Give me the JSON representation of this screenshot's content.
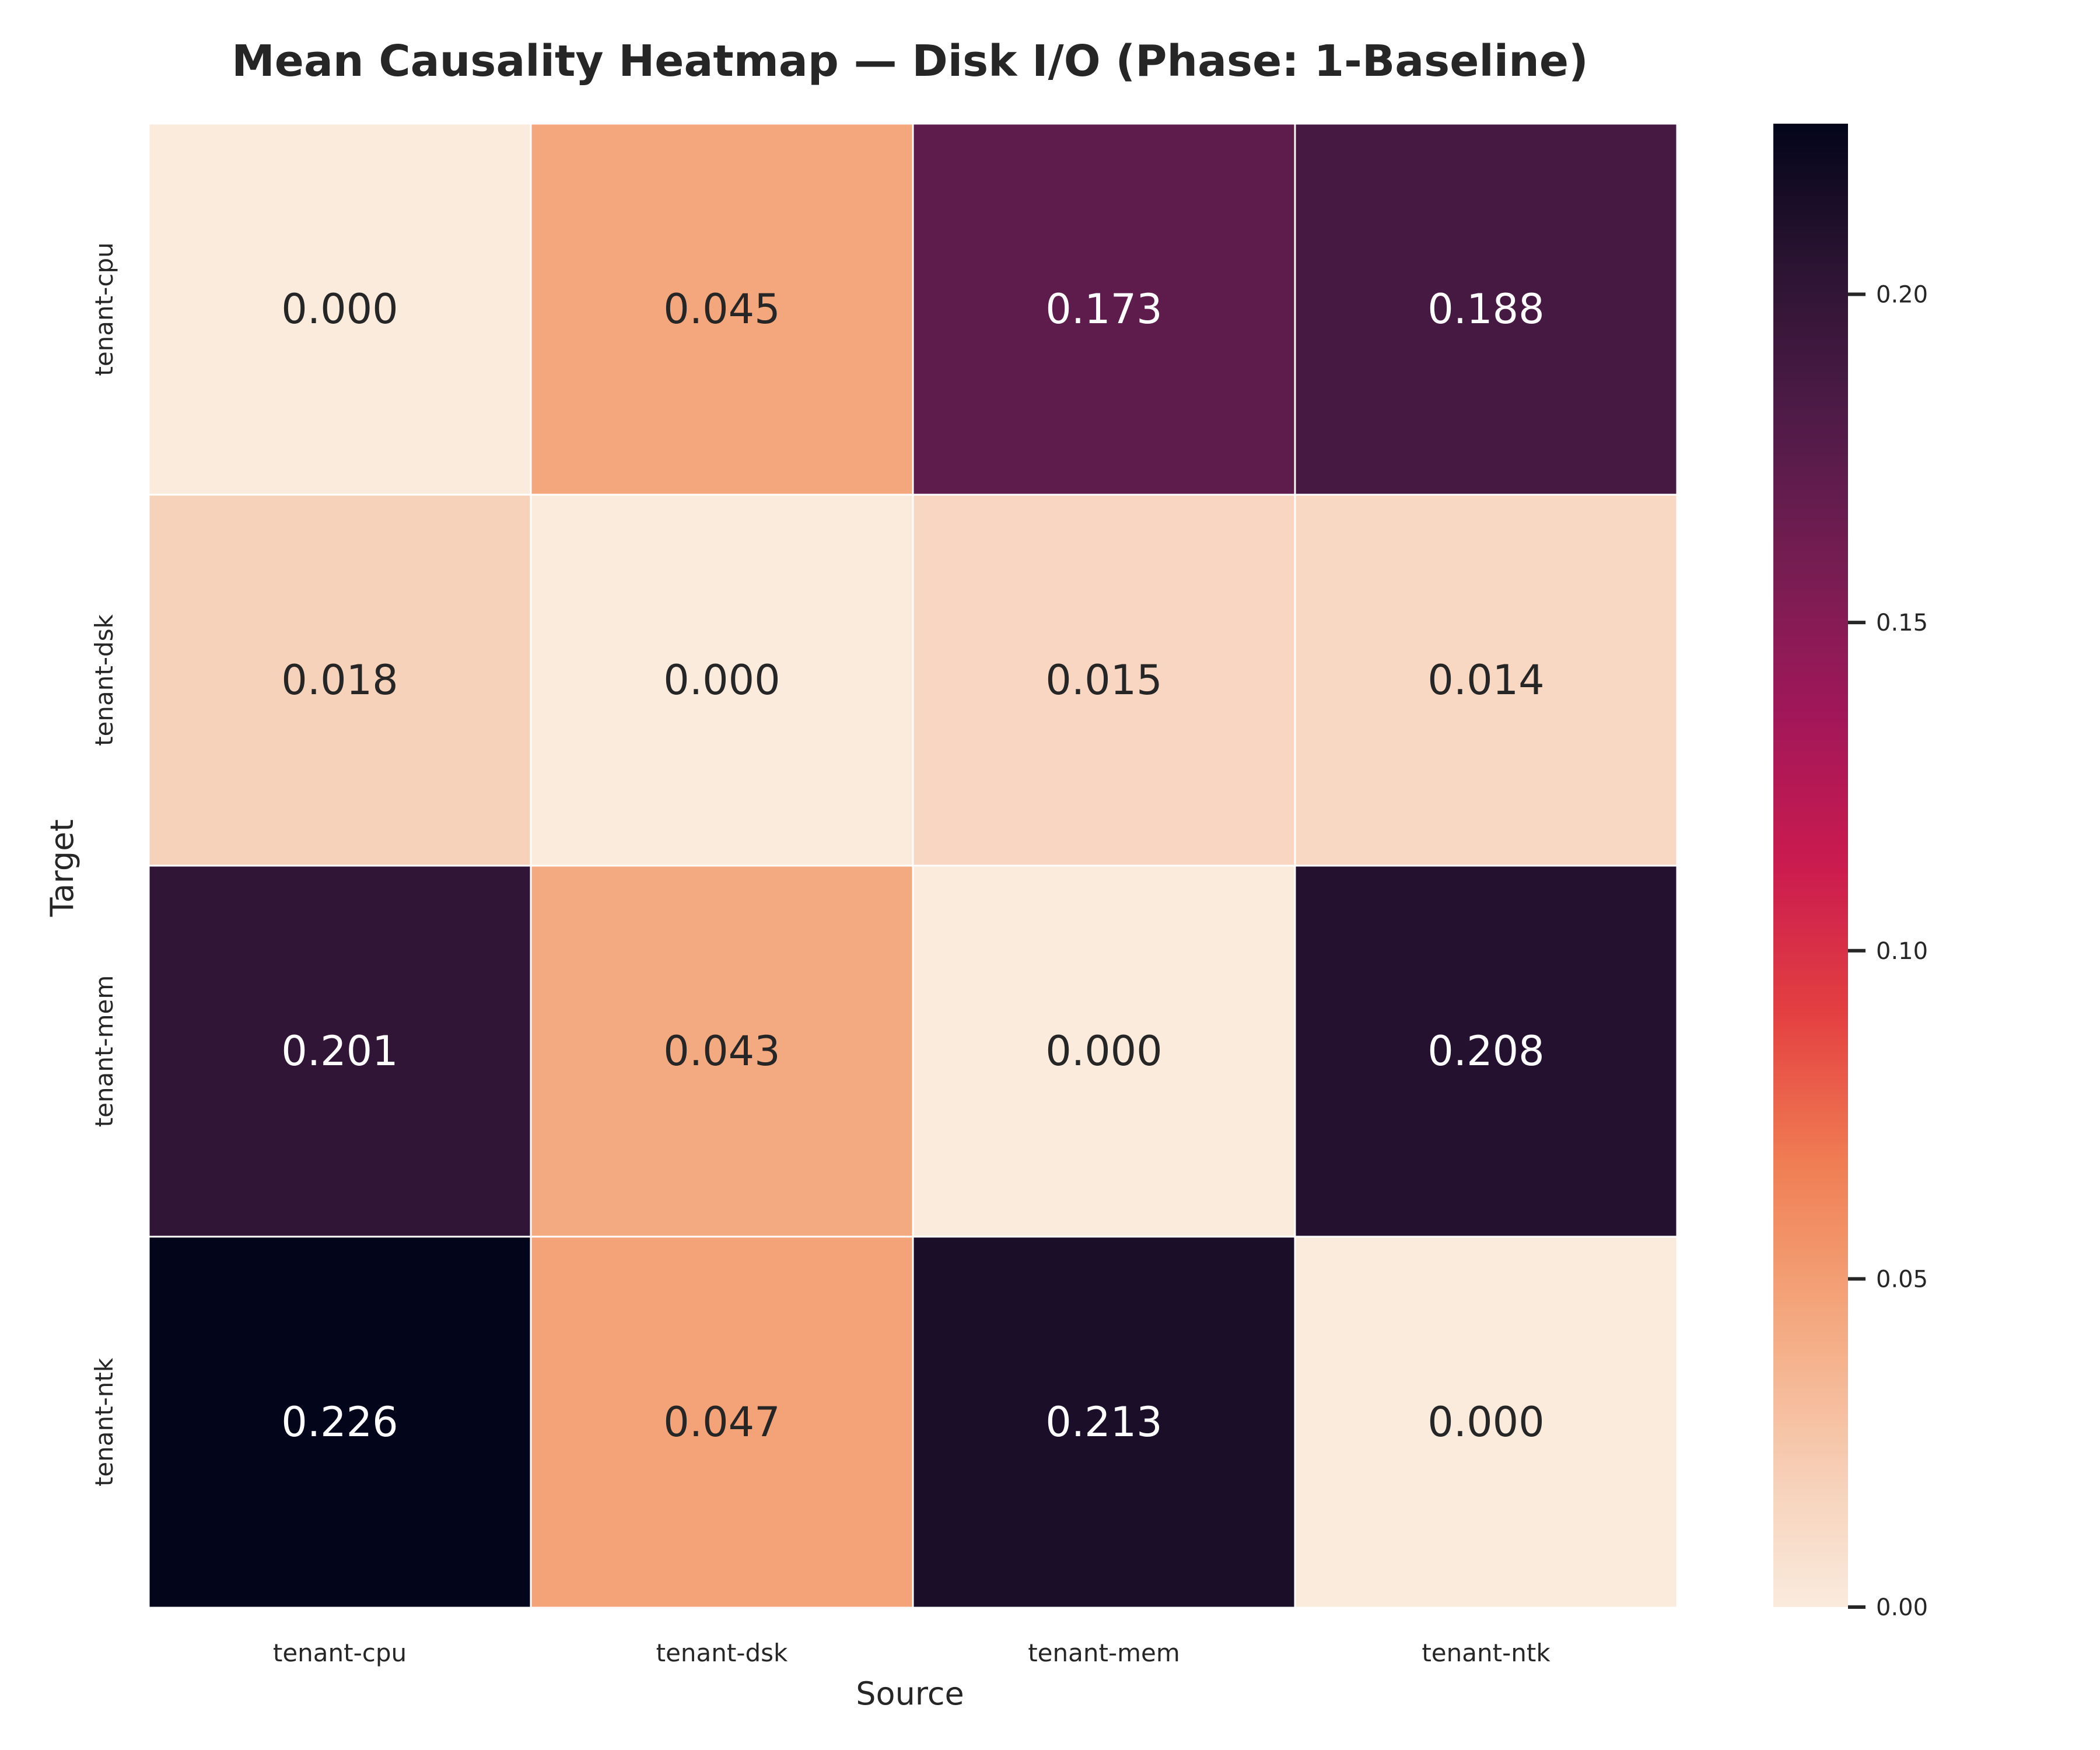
{
  "chart_data": {
    "type": "heatmap",
    "title": "Mean Causality Heatmap — Disk I/O (Phase: 1-Baseline)",
    "xlabel": "Source",
    "ylabel": "Target",
    "x_categories": [
      "tenant-cpu",
      "tenant-dsk",
      "tenant-mem",
      "tenant-ntk"
    ],
    "y_categories": [
      "tenant-cpu",
      "tenant-dsk",
      "tenant-mem",
      "tenant-ntk"
    ],
    "values": [
      [
        0.0,
        0.045,
        0.173,
        0.188
      ],
      [
        0.018,
        0.0,
        0.015,
        0.014
      ],
      [
        0.201,
        0.043,
        0.0,
        0.208
      ],
      [
        0.226,
        0.047,
        0.213,
        0.0
      ]
    ],
    "value_format": "0.000",
    "colormap": "rocket_r",
    "vmin": 0.0,
    "vmax": 0.226,
    "colorbar": {
      "ticks": [
        0.0,
        0.05,
        0.1,
        0.15,
        0.2
      ],
      "tick_labels": [
        "0.00",
        "0.05",
        "0.10",
        "0.15",
        "0.20"
      ],
      "placement": "right"
    },
    "grid": false,
    "cell_border_color": "#ffffff"
  }
}
